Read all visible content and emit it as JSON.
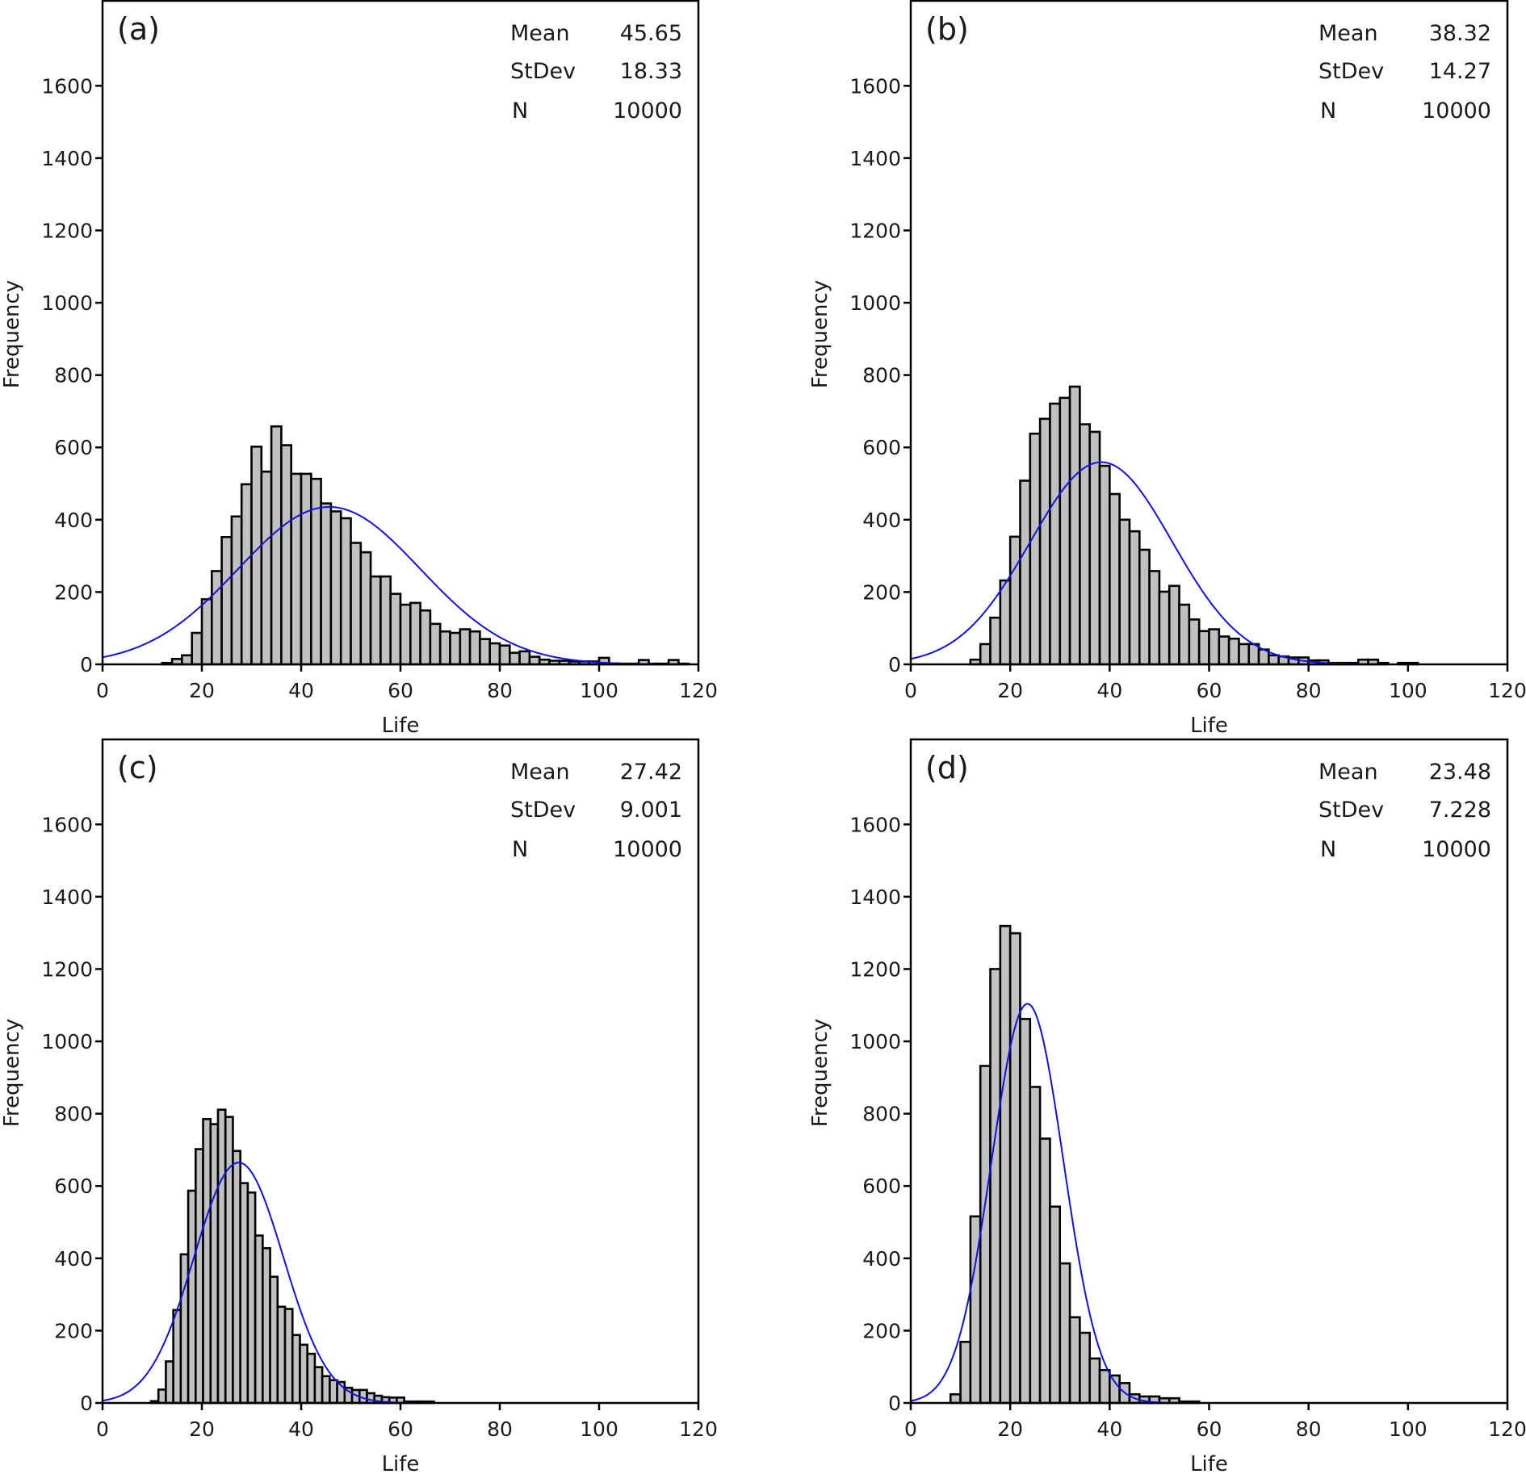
{
  "chart_data": [
    {
      "type": "bar",
      "panel_label": "(a)",
      "xlabel": "Life",
      "ylabel": "Frequency",
      "xlim": [
        0,
        120
      ],
      "ylim": [
        0,
        1835
      ],
      "xticks": [
        "0",
        "20",
        "40",
        "60",
        "80",
        "100",
        "120"
      ],
      "yticks": [
        "0",
        "200",
        "400",
        "600",
        "800",
        "1000",
        "1200",
        "1400",
        "1600"
      ],
      "grid": false,
      "stats": {
        "mean_label": "Mean",
        "mean": "45.65",
        "stdev_label": "StDev",
        "stdev": "18.33",
        "n_label": "N",
        "n": "10000"
      },
      "bin_start": 12,
      "bin_width": 2,
      "counts": [
        4,
        15,
        25,
        87,
        180,
        258,
        352,
        409,
        498,
        602,
        533,
        658,
        606,
        527,
        527,
        513,
        445,
        423,
        404,
        336,
        310,
        243,
        243,
        195,
        165,
        170,
        149,
        112,
        91,
        87,
        97,
        91,
        70,
        58,
        52,
        32,
        36,
        21,
        13,
        10,
        10,
        8,
        8,
        8,
        18,
        2,
        2,
        2,
        12,
        2,
        2,
        12,
        2
      ],
      "fit_curve": "normal"
    },
    {
      "type": "bar",
      "panel_label": "(b)",
      "xlabel": "Life",
      "ylabel": "Frequency",
      "xlim": [
        0,
        120
      ],
      "ylim": [
        0,
        1835
      ],
      "xticks": [
        "0",
        "20",
        "40",
        "60",
        "80",
        "100",
        "120"
      ],
      "yticks": [
        "0",
        "200",
        "400",
        "600",
        "800",
        "1000",
        "1200",
        "1400",
        "1600"
      ],
      "grid": false,
      "stats": {
        "mean_label": "Mean",
        "mean": "38.32",
        "stdev_label": "StDev",
        "stdev": "14.27",
        "n_label": "N",
        "n": "10000"
      },
      "bin_start": 12,
      "bin_width": 2,
      "counts": [
        13,
        56,
        129,
        232,
        353,
        508,
        638,
        679,
        721,
        737,
        768,
        664,
        643,
        549,
        471,
        400,
        368,
        317,
        258,
        201,
        217,
        165,
        124,
        92,
        97,
        77,
        71,
        56,
        56,
        41,
        25,
        22,
        19,
        19,
        11,
        11,
        4,
        4,
        4,
        13,
        13,
        4,
        0,
        4,
        4
      ],
      "fit_curve": "normal"
    },
    {
      "type": "bar",
      "panel_label": "(c)",
      "xlabel": "Life",
      "ylabel": "Frequency",
      "xlim": [
        0,
        120
      ],
      "ylim": [
        0,
        1835
      ],
      "xticks": [
        "0",
        "20",
        "40",
        "60",
        "80",
        "100",
        "120"
      ],
      "yticks": [
        "0",
        "200",
        "400",
        "600",
        "800",
        "1000",
        "1200",
        "1400",
        "1600"
      ],
      "grid": false,
      "stats": {
        "mean_label": "Mean",
        "mean": "27.42",
        "stdev_label": "StDev",
        "stdev": "9.001",
        "n_label": "N",
        "n": "10000"
      },
      "bin_start": 9.75,
      "bin_width": 1.5,
      "counts": [
        5,
        37,
        115,
        257,
        411,
        587,
        702,
        785,
        771,
        811,
        791,
        697,
        608,
        582,
        463,
        428,
        349,
        266,
        260,
        188,
        161,
        136,
        99,
        74,
        63,
        58,
        42,
        36,
        36,
        27,
        20,
        16,
        15,
        15,
        4,
        4,
        4,
        4
      ],
      "fit_curve": "normal"
    },
    {
      "type": "bar",
      "panel_label": "(d)",
      "xlabel": "Life",
      "ylabel": "Frequency",
      "xlim": [
        0,
        120
      ],
      "ylim": [
        0,
        1835
      ],
      "xticks": [
        "0",
        "20",
        "40",
        "60",
        "80",
        "100",
        "120"
      ],
      "yticks": [
        "0",
        "200",
        "400",
        "600",
        "800",
        "1000",
        "1200",
        "1400",
        "1600"
      ],
      "grid": false,
      "stats": {
        "mean_label": "Mean",
        "mean": "23.48",
        "stdev_label": "StDev",
        "stdev": "7.228",
        "n_label": "N",
        "n": "10000"
      },
      "bin_start": 8,
      "bin_width": 2,
      "counts": [
        24,
        169,
        516,
        932,
        1200,
        1319,
        1299,
        1062,
        874,
        731,
        543,
        386,
        237,
        194,
        123,
        91,
        76,
        55,
        24,
        18,
        18,
        13,
        13,
        4,
        4
      ],
      "fit_curve": "normal"
    }
  ],
  "colors": {
    "bar_fill": "#c0c0c0",
    "bar_stroke": "#000000",
    "curve": "#1010ee",
    "axis": "#000000"
  }
}
